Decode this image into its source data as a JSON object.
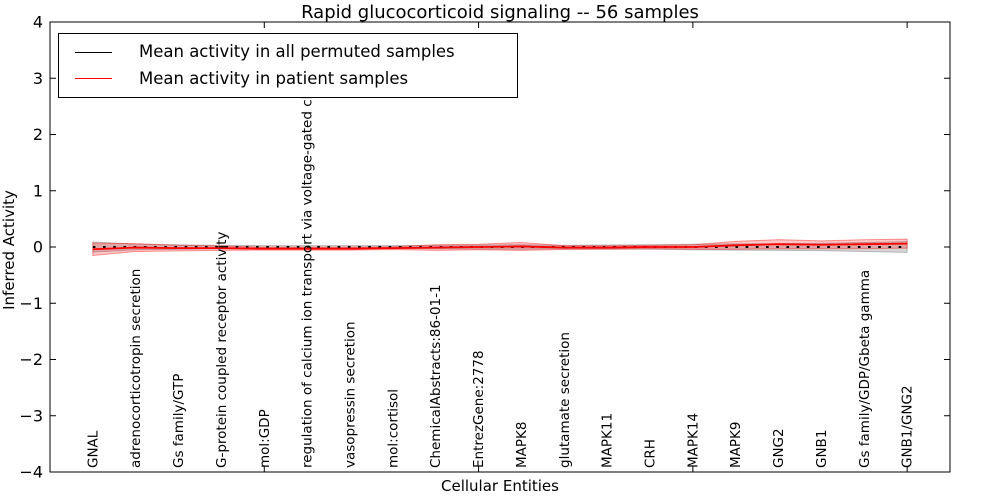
{
  "chart_data": {
    "type": "line",
    "title": "Rapid glucocorticoid signaling -- 56 samples",
    "xlabel": "Cellular Entities",
    "ylabel": "Inferred Activity",
    "xlim": [
      0,
      21
    ],
    "ylim": [
      -4,
      4
    ],
    "ytick_values": [
      -4,
      -3,
      -2,
      -1,
      0,
      1,
      2,
      3,
      4
    ],
    "ytick_labels": [
      "−4",
      "−3",
      "−2",
      "−1",
      "0",
      "1",
      "2",
      "3",
      "4"
    ],
    "xtick_values": [
      5,
      10,
      15,
      20
    ],
    "grid": false,
    "legend_position": "upper left",
    "categories": [
      "GNAL",
      "adrenocorticotropin secretion",
      "Gs family/GTP",
      "G-protein coupled receptor activity",
      "mol:GDP",
      "regulation of calcium ion transport via voltage-gated channel",
      "vasopressin secretion",
      "mol:cortisol",
      "ChemicalAbstracts:86-01-1",
      "EntrezGene:2778",
      "MAPK8",
      "glutamate secretion",
      "MAPK11",
      "CRH",
      "MAPK14",
      "MAPK9",
      "GNG2",
      "GNB1",
      "Gs family/GDP/Gbeta gamma",
      "GNB1/GNG2"
    ],
    "series": [
      {
        "name": "Mean activity in all permuted samples",
        "color": "#000000",
        "line_style": "dotted",
        "values": [
          0,
          0,
          0,
          0,
          0,
          0,
          0,
          0,
          0,
          0,
          0,
          0,
          0,
          0,
          0,
          0,
          0,
          0,
          0,
          0
        ],
        "band_halfwidth": [
          0.09,
          0.05,
          0.04,
          0.03,
          0.025,
          0.025,
          0.025,
          0.025,
          0.03,
          0.035,
          0.04,
          0.03,
          0.035,
          0.04,
          0.05,
          0.055,
          0.06,
          0.065,
          0.08,
          0.095
        ],
        "band_color": "#888888",
        "band_opacity": 0.35
      },
      {
        "name": "Mean activity in patient samples",
        "color": "#ff0000",
        "line_style": "solid",
        "values": [
          -0.04,
          -0.01,
          -0.02,
          -0.02,
          -0.03,
          -0.03,
          -0.03,
          -0.02,
          -0.01,
          0,
          0.01,
          -0.01,
          -0.01,
          0,
          0,
          0.03,
          0.05,
          0.04,
          0.05,
          0.06
        ],
        "band_halfwidth": [
          0.11,
          0.07,
          0.05,
          0.04,
          0.025,
          0.025,
          0.025,
          0.025,
          0.05,
          0.05,
          0.07,
          0.035,
          0.03,
          0.03,
          0.04,
          0.07,
          0.08,
          0.07,
          0.08,
          0.08
        ],
        "band_color": "#ff0000",
        "band_opacity": 0.22
      }
    ]
  },
  "legend": {
    "items": [
      {
        "label": "Mean activity in all permuted samples",
        "color": "#000000"
      },
      {
        "label": "Mean activity in patient samples",
        "color": "#ff0000"
      }
    ]
  }
}
